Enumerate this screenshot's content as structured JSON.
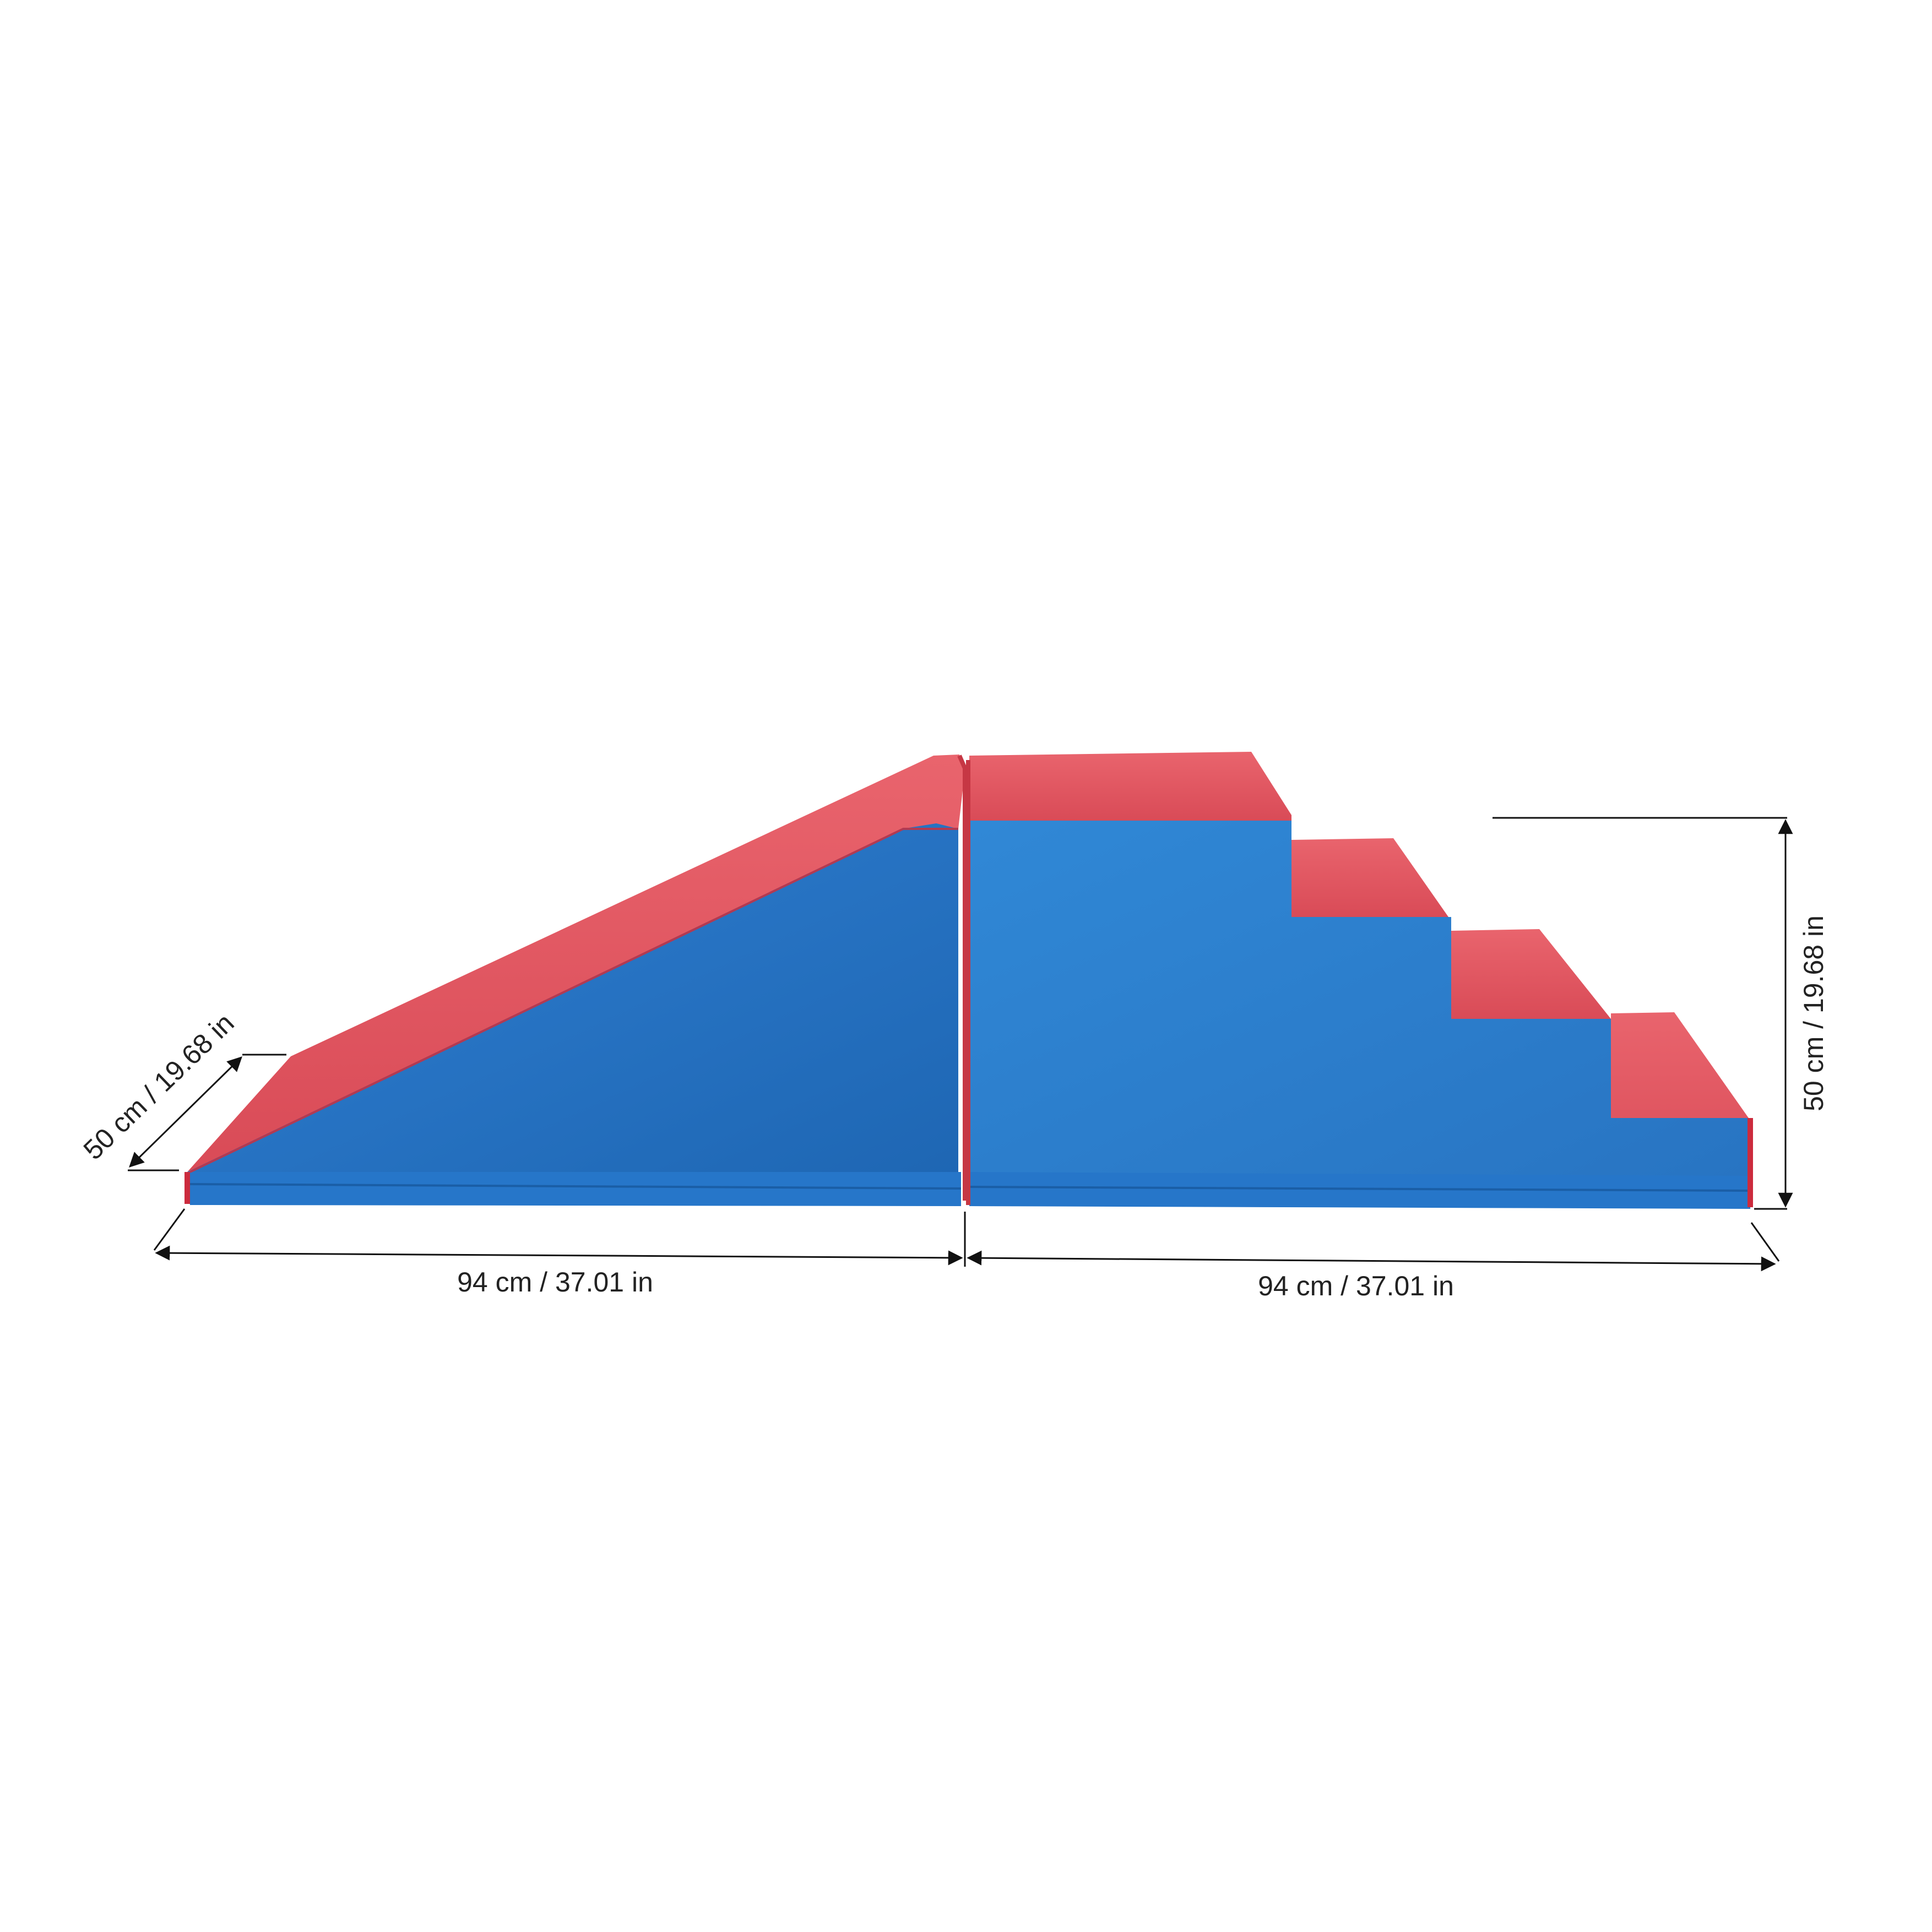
{
  "product": {
    "colors": {
      "top_red": "#e05a62",
      "side_blue": "#2a7fd0",
      "edge_red": "#cc2b3d",
      "background": "#ffffff",
      "line": "#111111"
    }
  },
  "dimensions": {
    "depth_label": "50 cm / 19.68 in",
    "ramp_length_label": "94 cm / 37.01 in",
    "stairs_length_label": "94 cm / 37.01 in",
    "height_label": "50 cm / 19.68 in"
  }
}
